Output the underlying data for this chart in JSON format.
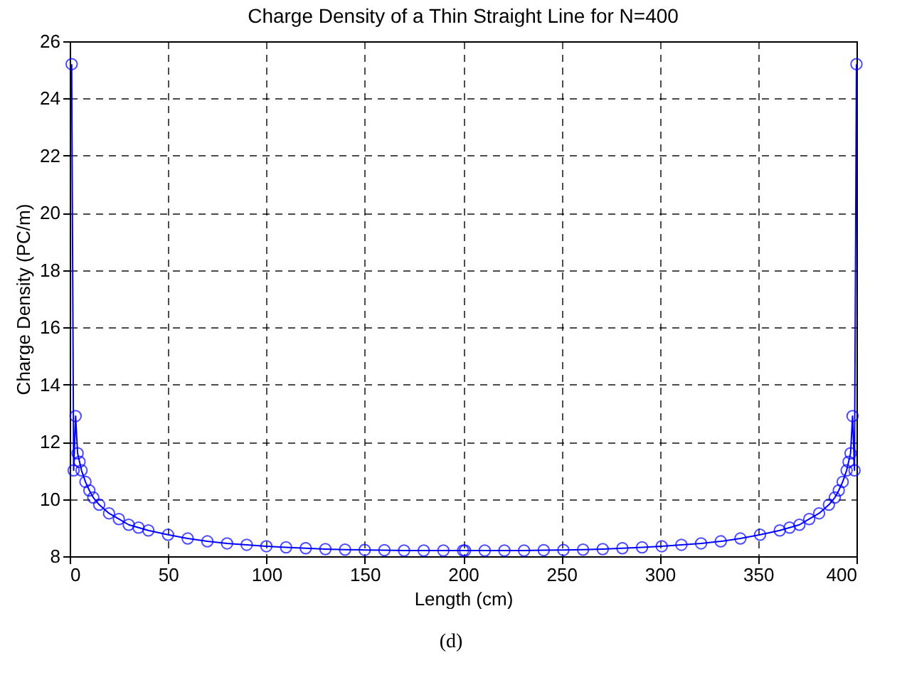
{
  "chart_data": {
    "type": "line",
    "title": "Charge Density of a Thin Straight Line for N=400",
    "xlabel": "Length  (cm)",
    "ylabel": "Charge Density   (PC/m)",
    "annotations": [
      "(d)"
    ],
    "series": [
      {
        "color": "#0000ff",
        "x": [
          1,
          2,
          3,
          4,
          5,
          6,
          8,
          10,
          12,
          15,
          20,
          25,
          30,
          35,
          40,
          50,
          60,
          70,
          80,
          90,
          100,
          110,
          120,
          130,
          140,
          150,
          160,
          170,
          180,
          190,
          200,
          201,
          211,
          221,
          231,
          241,
          251,
          261,
          271,
          281,
          291,
          301,
          311,
          321,
          331,
          341,
          351,
          361,
          366,
          371,
          376,
          381,
          386,
          389,
          391,
          393,
          395,
          396,
          397,
          398,
          399,
          400
        ],
        "values": [
          25.2,
          11.0,
          12.9,
          11.6,
          11.3,
          11.0,
          10.6,
          10.3,
          10.05,
          9.8,
          9.5,
          9.3,
          9.1,
          9.0,
          8.9,
          8.75,
          8.62,
          8.52,
          8.45,
          8.4,
          8.35,
          8.31,
          8.28,
          8.25,
          8.23,
          8.22,
          8.21,
          8.2,
          8.2,
          8.2,
          8.2,
          8.2,
          8.2,
          8.2,
          8.2,
          8.21,
          8.22,
          8.23,
          8.25,
          8.28,
          8.31,
          8.35,
          8.4,
          8.45,
          8.52,
          8.62,
          8.75,
          8.9,
          9.0,
          9.1,
          9.3,
          9.5,
          9.8,
          10.05,
          10.3,
          10.6,
          11.0,
          11.3,
          11.6,
          12.9,
          11.0,
          25.2
        ]
      }
    ],
    "xlim": [
      0,
      400
    ],
    "xticks": [
      0,
      50,
      100,
      150,
      200,
      250,
      300,
      350,
      400
    ],
    "ylim": [
      8,
      26
    ],
    "yticks": [
      8,
      10,
      12,
      14,
      16,
      18,
      20,
      22,
      24,
      26
    ],
    "grid": true,
    "marker": "circle",
    "line_style": "solid"
  }
}
